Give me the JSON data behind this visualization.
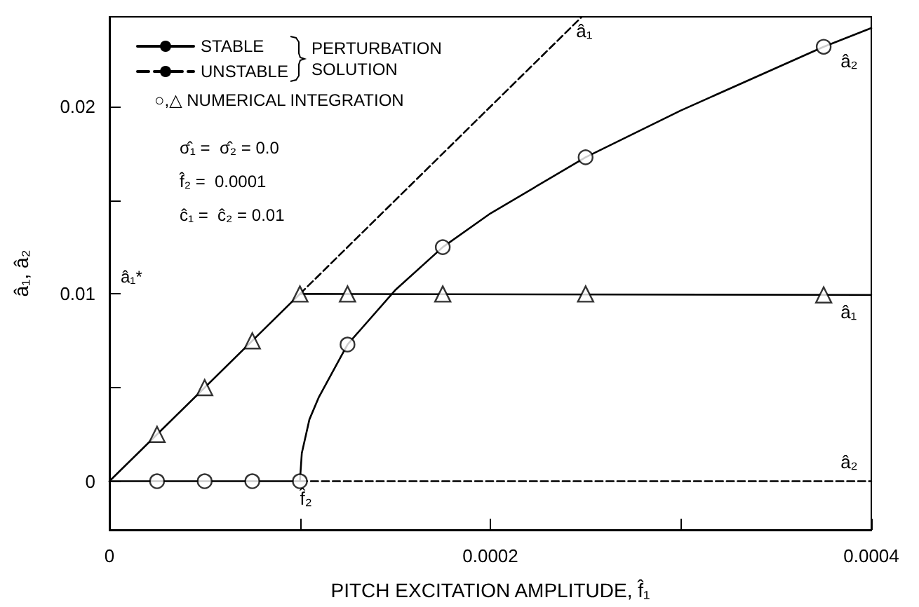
{
  "chart_data": {
    "type": "line",
    "xlabel": "PITCH EXCITATION AMPLITUDE, f̂₁",
    "ylabel": "â₁, â₂",
    "xlim": [
      0,
      0.0004
    ],
    "xticks": [
      0,
      {
        "value": 0.0001,
        "label": null
      },
      {
        "value": 0.0002,
        "label": "0.0002"
      },
      {
        "value": 0.0003,
        "label": null
      },
      {
        "value": 0.0004,
        "label": "0.0004"
      }
    ],
    "ylim": [
      -0.0026,
      0.0248
    ],
    "yticks": [
      0,
      {
        "value": 0.005,
        "label": null
      },
      {
        "value": 0.01,
        "label": "0.01"
      },
      {
        "value": 0.015,
        "label": null
      },
      {
        "value": 0.02,
        "label": "0.02"
      }
    ],
    "grid": false,
    "legend": "top left",
    "marker": "none",
    "series": [
      {
        "name": "STABLE",
        "line_style": "solid",
        "color": "#000000",
        "x": [
          0,
          0.0001,
          0.0004
        ],
        "values": [
          0,
          0.01,
          0.00995
        ]
      },
      {
        "name": "UNSTABLE",
        "line_style": "dashed",
        "color": "#000000",
        "x": [
          0.0001,
          0.000248
        ],
        "values": [
          0.01,
          0.0248
        ]
      },
      {
        "line_style": "solid",
        "color": "#000000",
        "x": [
          0,
          0.0001,
          0.000101,
          0.000105,
          0.00011,
          0.000125,
          0.00015,
          0.000175,
          0.0002,
          0.00025,
          0.0003,
          0.000375,
          0.0004
        ],
        "values": [
          0,
          0,
          0.0015,
          0.0033,
          0.0045,
          0.0073,
          0.0102,
          0.0125,
          0.0143,
          0.0173,
          0.0198,
          0.0232,
          0.0242
        ]
      },
      {
        "line_style": "dashed",
        "color": "#000000",
        "x": [
          0.0001,
          0.0004
        ],
        "values": [
          0,
          0
        ]
      },
      {
        "type": "scatter",
        "marker": "circle",
        "color": "#000000",
        "x": [
          2.5e-05,
          5e-05,
          7.5e-05,
          0.0001,
          0.000125,
          0.000175,
          0.00025,
          0.000375
        ],
        "values": [
          0,
          0,
          0,
          0,
          0.0073,
          0.0125,
          0.0173,
          0.0232
        ]
      },
      {
        "type": "scatter",
        "marker": "triangle",
        "color": "#000000",
        "x": [
          2.5e-05,
          5e-05,
          7.5e-05,
          0.0001,
          0.000125,
          0.000175,
          0.00025,
          0.000375
        ],
        "values": [
          0.0025,
          0.005,
          0.0075,
          0.01,
          0.01,
          0.01,
          0.01,
          0.00995
        ]
      }
    ],
    "annotations": [
      "PERTURBATION SOLUTION",
      "○,△ NUMERICAL INTEGRATION",
      "σ̂₁ =  σ̂₂ = 0.0",
      "f̂₂ =  0.0001",
      "ĉ₁ =  ĉ₂ = 0.01",
      "â₁*",
      {
        "text": "â₁",
        "x": 0.000248,
        "y": 0.0248
      },
      {
        "text": "â₂",
        "x": 0.000375,
        "y": 0.0232
      },
      {
        "text": "â₁",
        "x": 0.000375,
        "y": 0.00995
      },
      {
        "text": "â₂",
        "x": 0.000375,
        "y": 0
      },
      {
        "text": "f̂₂",
        "x": 0.0001,
        "y": 0
      }
    ]
  }
}
